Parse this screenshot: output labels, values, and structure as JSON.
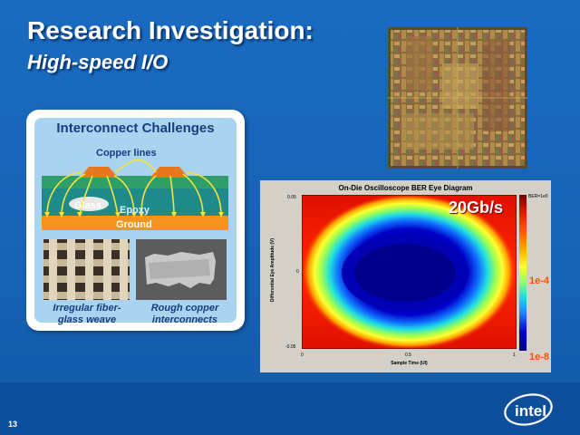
{
  "slide": {
    "title": "Research Investigation:",
    "subtitle": "High-speed I/O",
    "page_number": "13"
  },
  "interconnect": {
    "title": "Interconnect Challenges",
    "copper_label": "Copper lines",
    "glass_label": "Glass",
    "epoxy_label": "Epoxy",
    "ground_label": "Ground",
    "caption_left": "Irregular fiber-glass weave",
    "caption_left_line1": "Irregular fiber-",
    "caption_left_line2": "glass weave",
    "caption_right_line1": "Rough copper",
    "caption_right_line2": "interconnects"
  },
  "eye_diagram": {
    "title": "On-Die Oscilloscope BER Eye Diagram",
    "data_rate": "20Gb/s",
    "y_axis_label": "Differential Eye Amplitude (V)",
    "x_axis_label": "Sample Time (UI)",
    "y_ticks": [
      "0.05",
      "0",
      "-0.05"
    ],
    "x_ticks": [
      "0",
      "0.5",
      "1"
    ],
    "colorbar_top": "BER=1e0",
    "ber_mid": "1e-4",
    "ber_low": "1e-8"
  },
  "logo": {
    "text": "intel",
    "color": "#ffffff"
  },
  "colors": {
    "background": "#1565b8",
    "card_fill": "#a9d3ee",
    "title_text": "#173e7e"
  }
}
